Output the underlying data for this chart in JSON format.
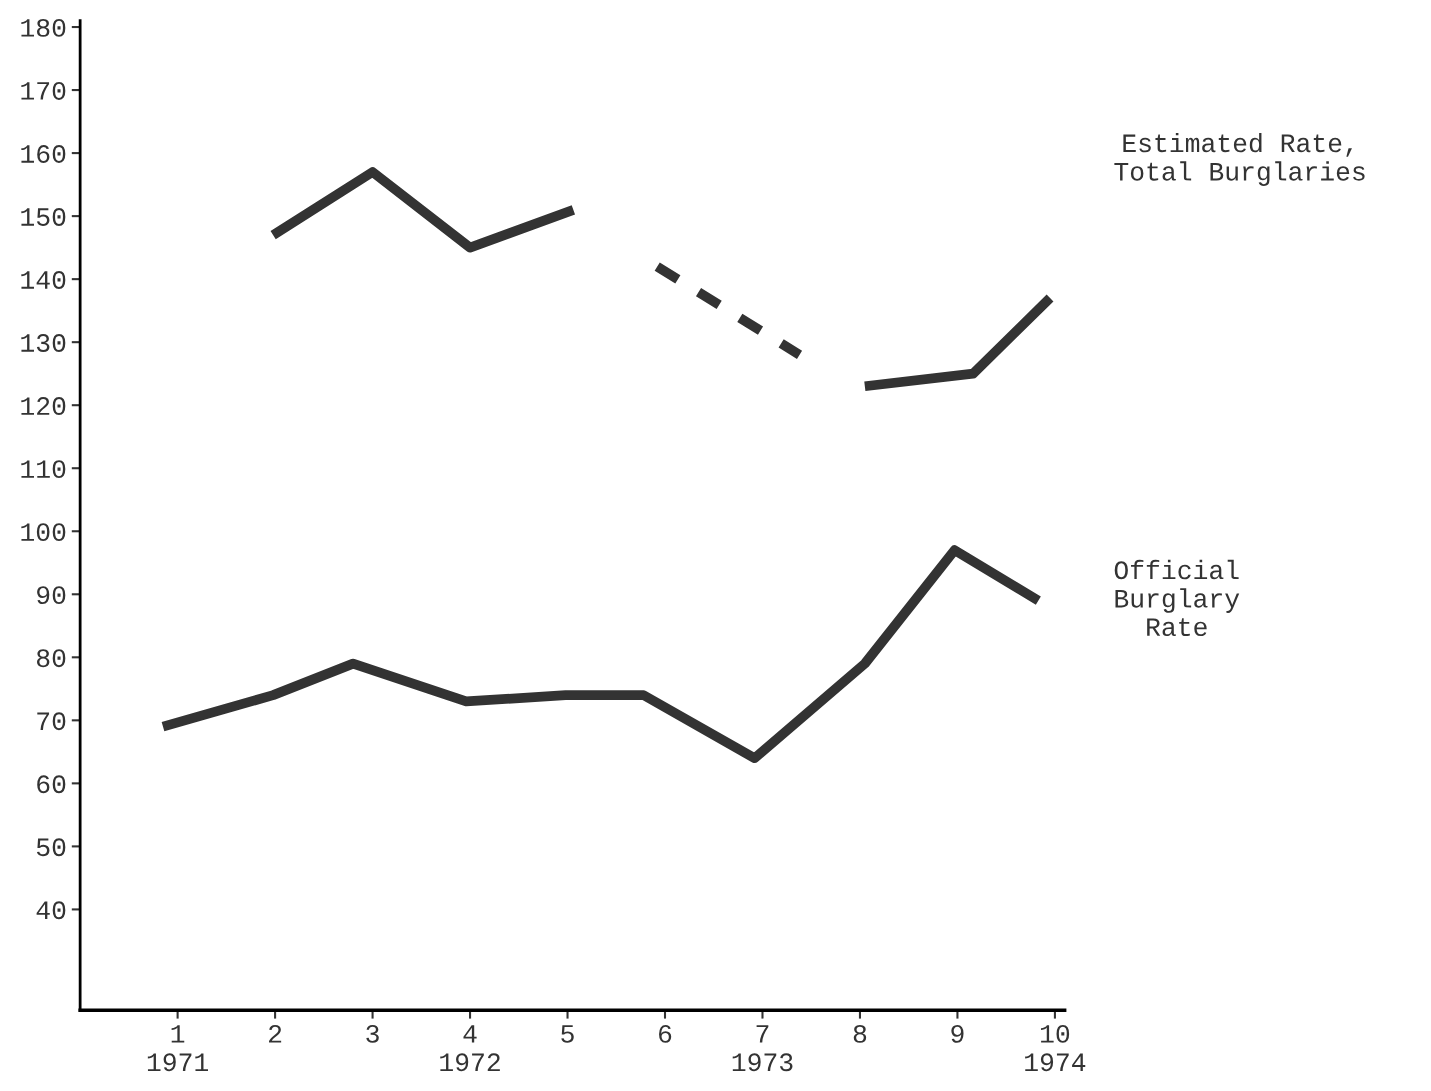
{
  "chart_data": {
    "type": "line",
    "xlim": [
      0,
      10.1
    ],
    "ylim": [
      24,
      181
    ],
    "xticks": [
      {
        "value": 1,
        "label": "1\n1971"
      },
      2,
      3,
      {
        "value": 4,
        "label": "4\n1972"
      },
      5,
      6,
      {
        "value": 7,
        "label": "7\n1973"
      },
      8,
      9,
      {
        "value": 10,
        "label": "10\n1974"
      }
    ],
    "yticks": [
      40,
      50,
      60,
      70,
      80,
      90,
      100,
      110,
      120,
      130,
      140,
      150,
      160,
      170,
      180
    ],
    "grid": false,
    "legend": false,
    "marker": "none",
    "series": [
      {
        "name": "Estimated Rate,\nTotal Burglaries",
        "color": "#333333",
        "line_style": "solid",
        "x": [
          1.98,
          3.0,
          4.0,
          5.06,
          5.92,
          7.38,
          8.05,
          9.16,
          9.95
        ],
        "values": [
          147,
          157,
          145,
          151,
          null,
          null,
          123,
          125,
          137
        ]
      },
      {
        "color": "#333333",
        "line_style": "dashed",
        "x": [
          5.92,
          7.38
        ],
        "values": [
          142,
          128
        ]
      },
      {
        "name": "Official\nBurglary\nRate",
        "color": "#333333",
        "line_style": "solid",
        "x": [
          0.85,
          1.98,
          2.8,
          3.96,
          4.98,
          5.78,
          6.92,
          8.05,
          8.97,
          9.83
        ],
        "values": [
          69,
          74,
          79,
          73,
          74,
          74,
          64,
          79,
          97,
          89
        ]
      }
    ]
  }
}
